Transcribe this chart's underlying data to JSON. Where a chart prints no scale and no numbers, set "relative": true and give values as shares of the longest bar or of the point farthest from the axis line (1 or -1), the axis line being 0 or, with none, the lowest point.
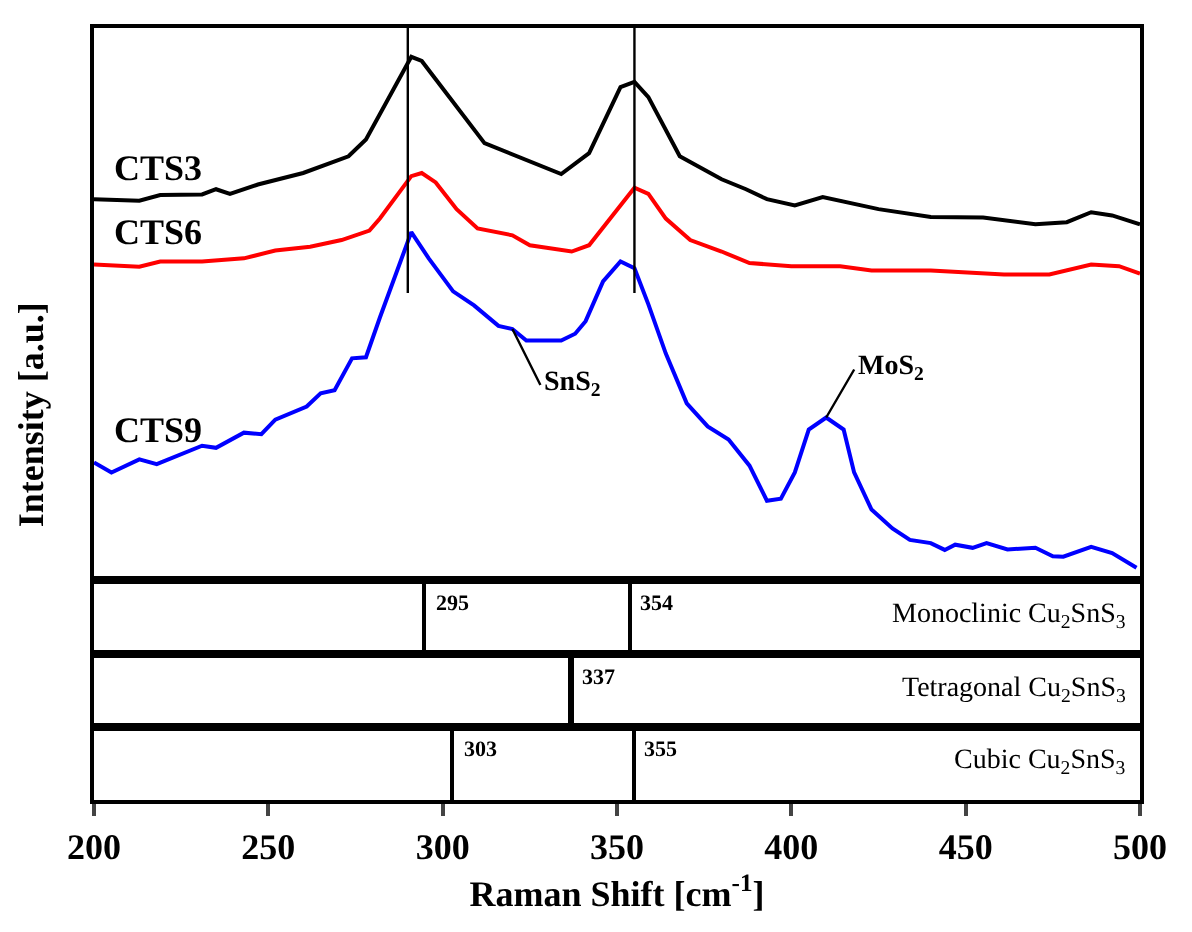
{
  "chart_data": [
    {
      "type": "line",
      "relative": true,
      "ylabel": "Intensity [a.u.]",
      "xlim": [
        200,
        500
      ],
      "tick_labels": false,
      "line_style": "solid",
      "series": [
        {
          "name": "CTS3",
          "color": "#000000",
          "x": [
            200,
            213,
            219,
            231,
            235,
            239,
            247,
            260,
            273,
            278,
            291,
            294,
            312,
            334,
            342,
            351,
            355,
            359,
            368,
            380,
            387,
            393,
            401,
            409,
            425,
            440,
            455,
            470,
            479,
            486,
            492,
            500
          ],
          "values": [
            0.728,
            0.725,
            0.736,
            0.737,
            0.747,
            0.738,
            0.756,
            0.778,
            0.81,
            0.842,
            1.0,
            0.992,
            0.835,
            0.776,
            0.816,
            0.942,
            0.952,
            0.923,
            0.81,
            0.766,
            0.747,
            0.728,
            0.716,
            0.732,
            0.709,
            0.694,
            0.693,
            0.68,
            0.684,
            0.703,
            0.697,
            0.68
          ]
        },
        {
          "name": "CTS6",
          "color": "#ff0000",
          "x": [
            200,
            213,
            219,
            231,
            243,
            252,
            262,
            271,
            279,
            282,
            291,
            294,
            298,
            304,
            310,
            320,
            325,
            337,
            342,
            355,
            359,
            364,
            371,
            380,
            388,
            400,
            414,
            423,
            440,
            461,
            474,
            486,
            494,
            500
          ],
          "values": [
            0.603,
            0.599,
            0.609,
            0.609,
            0.615,
            0.63,
            0.637,
            0.65,
            0.668,
            0.691,
            0.772,
            0.778,
            0.76,
            0.709,
            0.672,
            0.659,
            0.64,
            0.628,
            0.64,
            0.75,
            0.738,
            0.691,
            0.65,
            0.628,
            0.606,
            0.6,
            0.6,
            0.592,
            0.592,
            0.584,
            0.584,
            0.603,
            0.6,
            0.586
          ]
        },
        {
          "name": "CTS9",
          "color": "#0000ff",
          "x": [
            200,
            205,
            213,
            218,
            231,
            235,
            243,
            248,
            252,
            261,
            265,
            269,
            274,
            278,
            282,
            291,
            296,
            303,
            309,
            316,
            320,
            324,
            334,
            338,
            341,
            346,
            351,
            355,
            359,
            364,
            370,
            376,
            382,
            388,
            393,
            397,
            401,
            405,
            410,
            415,
            418,
            423,
            429,
            434,
            440,
            444,
            447,
            452,
            456,
            462,
            470,
            475,
            478,
            486,
            492,
            499
          ],
          "values": [
            0.225,
            0.206,
            0.231,
            0.222,
            0.257,
            0.253,
            0.282,
            0.279,
            0.307,
            0.332,
            0.357,
            0.363,
            0.424,
            0.426,
            0.502,
            0.665,
            0.615,
            0.552,
            0.525,
            0.486,
            0.48,
            0.458,
            0.458,
            0.471,
            0.495,
            0.571,
            0.609,
            0.596,
            0.527,
            0.433,
            0.338,
            0.294,
            0.269,
            0.219,
            0.152,
            0.156,
            0.206,
            0.288,
            0.311,
            0.288,
            0.206,
            0.135,
            0.099,
            0.077,
            0.071,
            0.058,
            0.068,
            0.062,
            0.071,
            0.059,
            0.062,
            0.046,
            0.045,
            0.064,
            0.052,
            0.024
          ]
        }
      ],
      "ref_lines": [
        {
          "axis": "x",
          "value": 290
        },
        {
          "axis": "x",
          "value": 355
        }
      ],
      "annotations": [
        {
          "text": "SnS$_{2}$",
          "x": 320,
          "y": 0.48
        },
        {
          "text": "MoS$_{2}$",
          "x": 410,
          "y": 0.311
        }
      ]
    },
    {
      "type": "bar",
      "relative": true,
      "xlim": [
        200,
        500
      ],
      "tick_labels": false,
      "color": "#000000",
      "x": [
        295,
        354
      ],
      "values": [
        1,
        1
      ],
      "annotations": [
        "Monoclinic Cu$_{2}$SnS$_{3}$",
        {
          "text": "295",
          "x": 295,
          "y": 1
        },
        {
          "text": "354",
          "x": 354,
          "y": 1
        }
      ]
    },
    {
      "type": "bar",
      "relative": true,
      "xlim": [
        200,
        500
      ],
      "tick_labels": false,
      "color": "#000000",
      "x": [
        337
      ],
      "values": [
        1
      ],
      "annotations": [
        "Tetragonal Cu$_{2}$SnS$_{3}$",
        {
          "text": "337",
          "x": 337,
          "y": 1
        }
      ]
    },
    {
      "type": "bar",
      "relative": true,
      "xlim": [
        200,
        500
      ],
      "xticks": [
        200,
        250,
        300,
        350,
        400,
        450,
        500
      ],
      "tick_labels": "x",
      "xlabel": "Raman Shift [cm$^{-1}$]",
      "color": "#000000",
      "x": [
        303,
        355
      ],
      "values": [
        1,
        1
      ],
      "annotations": [
        "Cubic Cu$_{2}$SnS$_{3}$",
        {
          "text": "303",
          "x": 303,
          "y": 1
        },
        {
          "text": "355",
          "x": 355,
          "y": 1
        }
      ]
    }
  ]
}
